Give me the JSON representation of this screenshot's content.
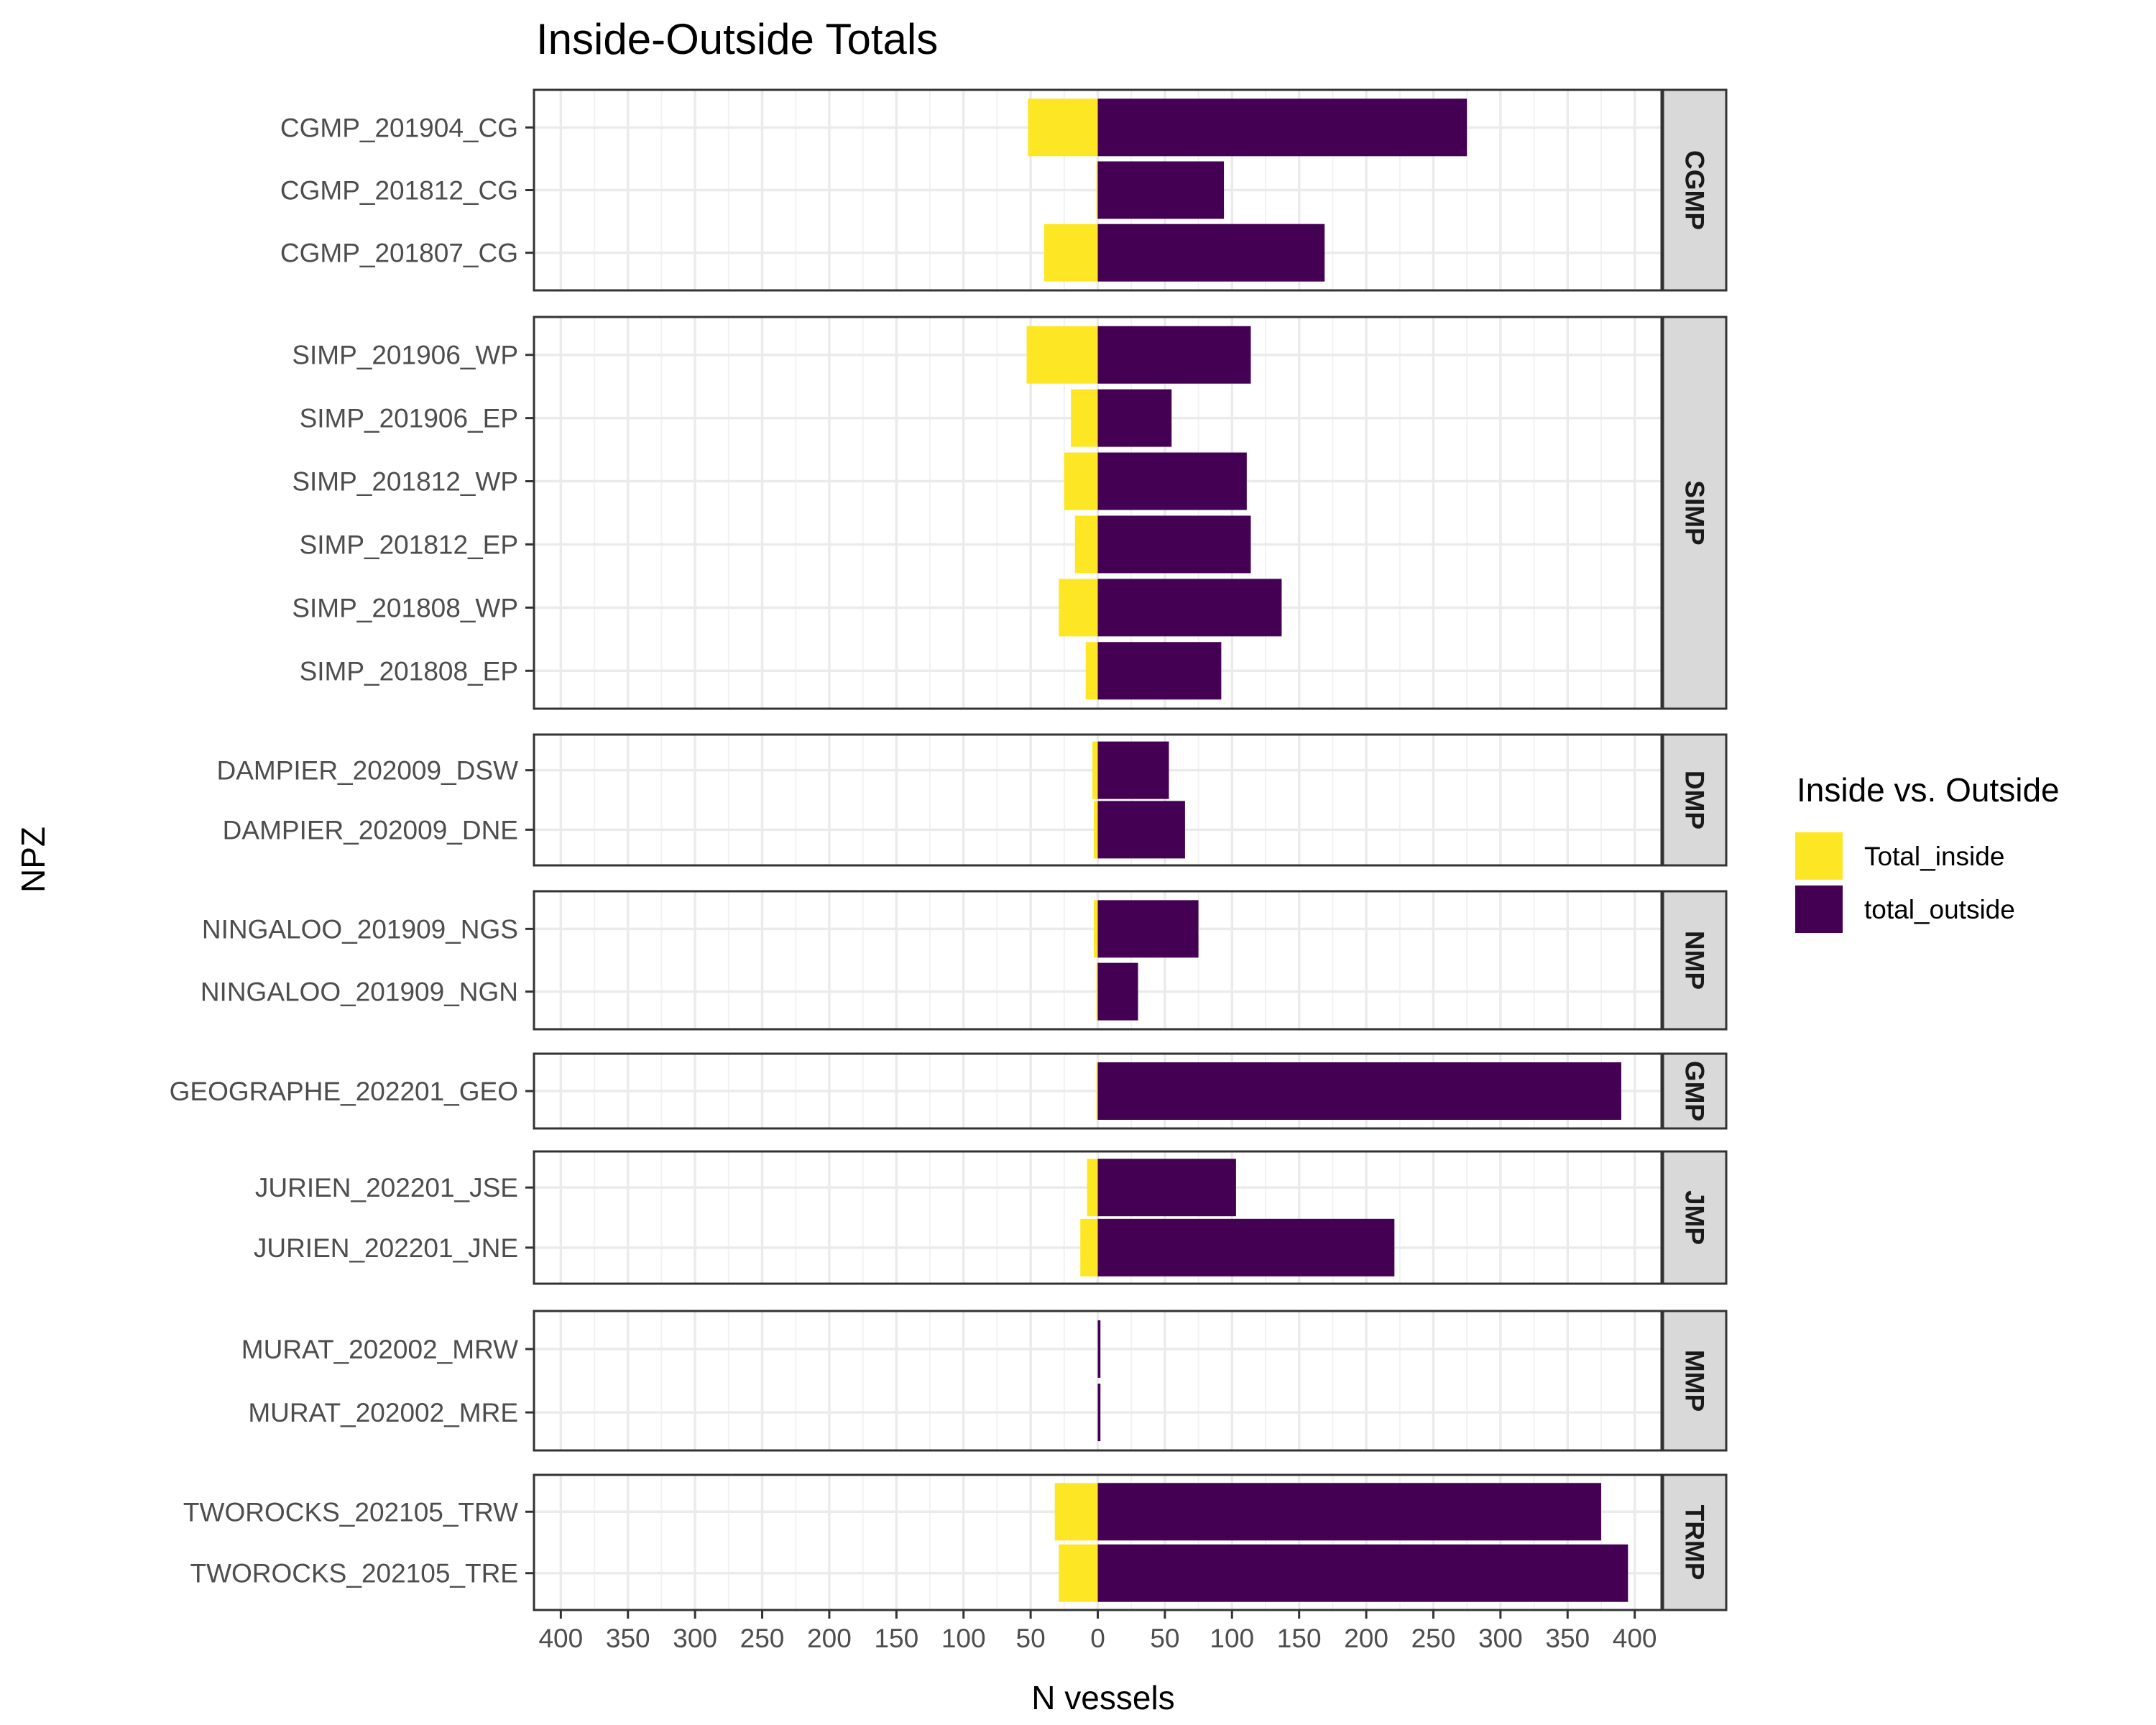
{
  "chart_data": {
    "type": "bar",
    "orientation": "horizontal-diverging",
    "title": "Inside-Outside Totals",
    "xlabel": "N vessels",
    "ylabel": "NPZ",
    "xlim": [
      -420,
      420
    ],
    "x_tick_labels": [
      "400",
      "350",
      "300",
      "250",
      "200",
      "150",
      "100",
      "50",
      "0",
      "50",
      "100",
      "150",
      "200",
      "250",
      "300",
      "350",
      "400"
    ],
    "x_tick_values": [
      -400,
      -350,
      -300,
      -250,
      -200,
      -150,
      -100,
      -50,
      0,
      50,
      100,
      150,
      200,
      250,
      300,
      350,
      400
    ],
    "grid": true,
    "legend": {
      "title": "Inside vs. Outside",
      "position": "right",
      "entries": [
        {
          "label": "Total_inside",
          "color": "#fde725"
        },
        {
          "label": "total_outside",
          "color": "#440154"
        }
      ]
    },
    "panels": [
      {
        "facet": "CGMP",
        "rows": [
          {
            "label": "CGMP_201904_CG",
            "inside": 52,
            "outside": 275
          },
          {
            "label": "CGMP_201812_CG",
            "inside": 1,
            "outside": 94
          },
          {
            "label": "CGMP_201807_CG",
            "inside": 40,
            "outside": 169
          }
        ]
      },
      {
        "facet": "SIMP",
        "rows": [
          {
            "label": "SIMP_201906_WP",
            "inside": 53,
            "outside": 114
          },
          {
            "label": "SIMP_201906_EP",
            "inside": 20,
            "outside": 55
          },
          {
            "label": "SIMP_201812_WP",
            "inside": 25,
            "outside": 111
          },
          {
            "label": "SIMP_201812_EP",
            "inside": 17,
            "outside": 114
          },
          {
            "label": "SIMP_201808_WP",
            "inside": 29,
            "outside": 137
          },
          {
            "label": "SIMP_201808_EP",
            "inside": 9,
            "outside": 92
          }
        ]
      },
      {
        "facet": "DMP",
        "rows": [
          {
            "label": "DAMPIER_202009_DSW",
            "inside": 4,
            "outside": 53
          },
          {
            "label": "DAMPIER_202009_DNE",
            "inside": 3,
            "outside": 65
          }
        ]
      },
      {
        "facet": "NMP",
        "rows": [
          {
            "label": "NINGALOO_201909_NGS",
            "inside": 3,
            "outside": 75
          },
          {
            "label": "NINGALOO_201909_NGN",
            "inside": 1,
            "outside": 30
          }
        ]
      },
      {
        "facet": "GMP",
        "rows": [
          {
            "label": "GEOGRAPHE_202201_GEO",
            "inside": 1,
            "outside": 390
          }
        ]
      },
      {
        "facet": "JMP",
        "rows": [
          {
            "label": "JURIEN_202201_JSE",
            "inside": 8,
            "outside": 103
          },
          {
            "label": "JURIEN_202201_JNE",
            "inside": 13,
            "outside": 221
          }
        ]
      },
      {
        "facet": "MMP",
        "rows": [
          {
            "label": "MURAT_202002_MRW",
            "inside": 0,
            "outside": 2
          },
          {
            "label": "MURAT_202002_MRE",
            "inside": 0,
            "outside": 2
          }
        ]
      },
      {
        "facet": "TRMP",
        "rows": [
          {
            "label": "TWOROCKS_202105_TRW",
            "inside": 32,
            "outside": 375
          },
          {
            "label": "TWOROCKS_202105_TRE",
            "inside": 29,
            "outside": 395
          }
        ]
      }
    ]
  }
}
